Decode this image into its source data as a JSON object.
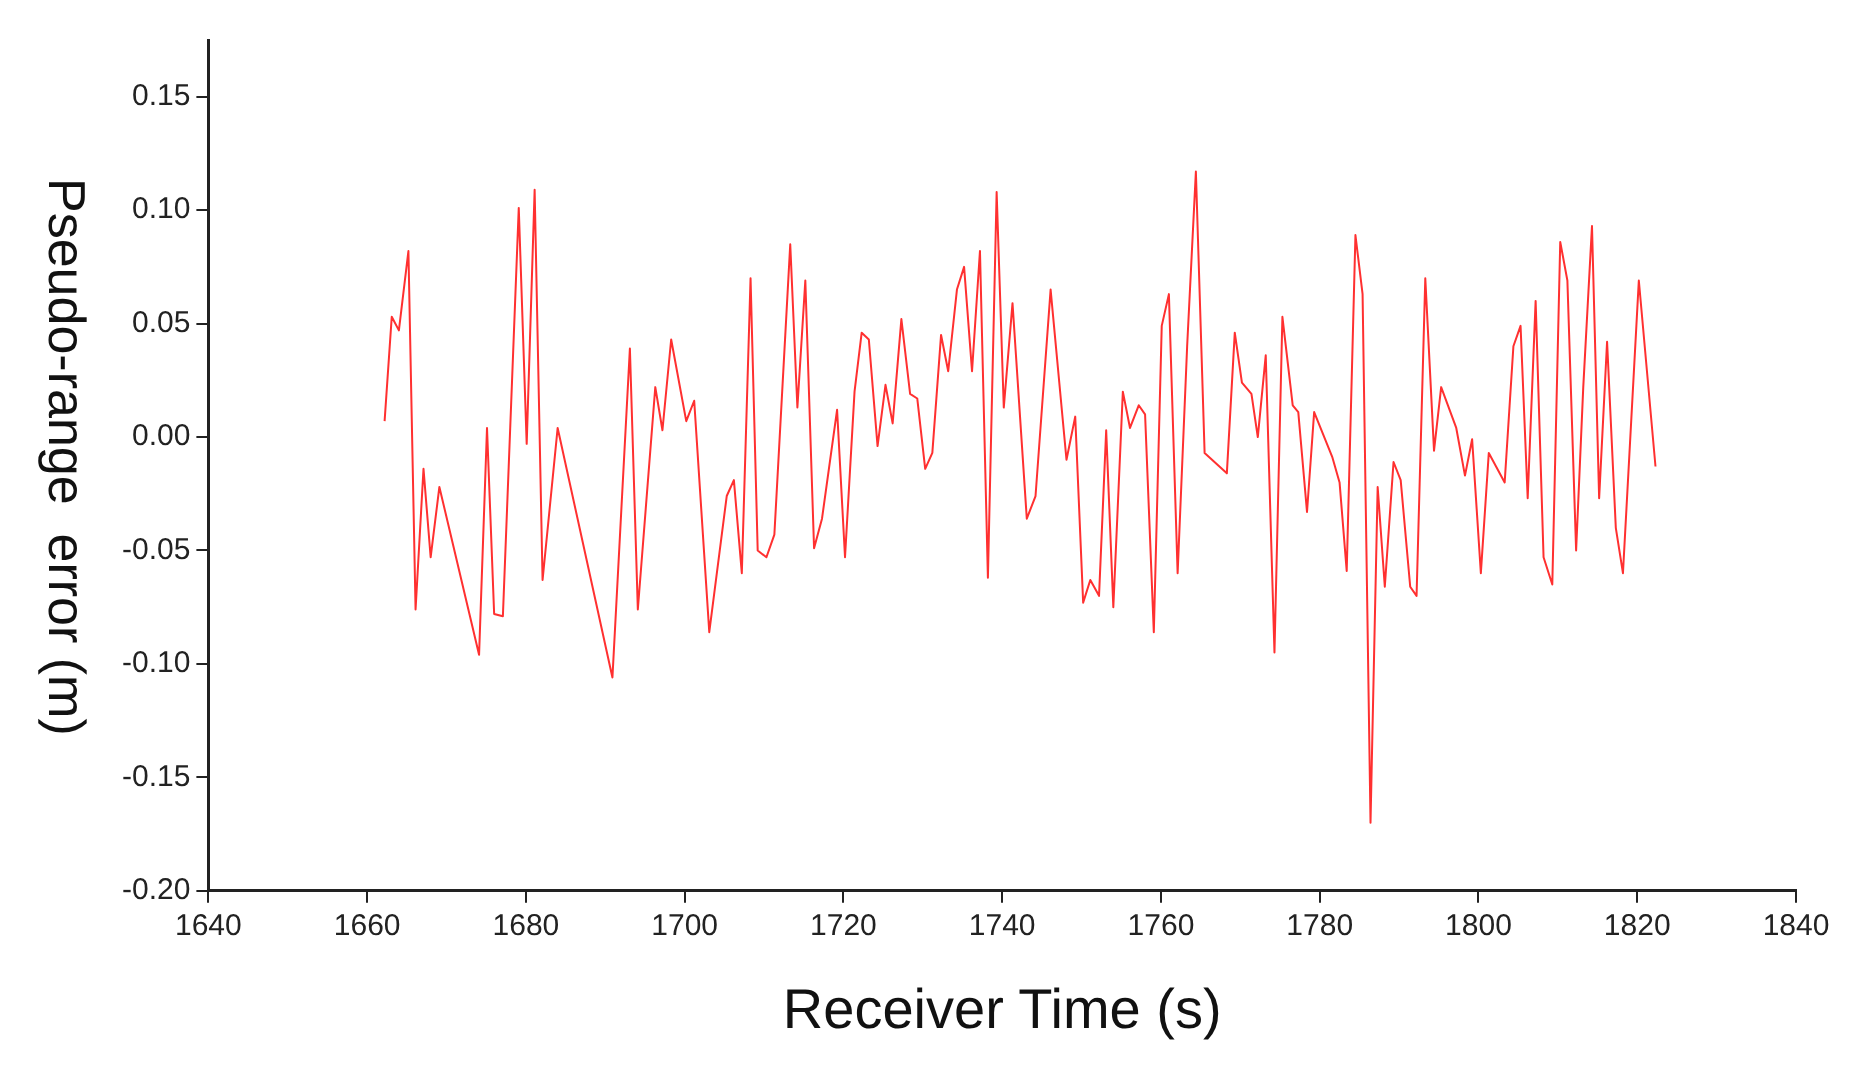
{
  "chart_data": {
    "type": "line",
    "xlabel": "Receiver Time (s)",
    "ylabel": "Pseudo-range  error (m)",
    "xlim": [
      1640,
      1840
    ],
    "xticks": [
      1640,
      1660,
      1680,
      1700,
      1720,
      1740,
      1760,
      1780,
      1800,
      1820,
      1840
    ],
    "ylim": [
      -0.2,
      0.175
    ],
    "yticks": [
      {
        "value": -0.2,
        "label": "-0.20"
      },
      {
        "value": -0.15,
        "label": "-0.15"
      },
      {
        "value": -0.1,
        "label": "-0.10"
      },
      {
        "value": -0.05,
        "label": "-0.05"
      },
      {
        "value": 0,
        "label": "0.00"
      },
      {
        "value": 0.05,
        "label": "0.05"
      },
      {
        "value": 0.1,
        "label": "0.10"
      },
      {
        "value": 0.15,
        "label": "0.15"
      }
    ],
    "grid": false,
    "legend": false,
    "marker": "none",
    "line_style": "solid",
    "series": [
      {
        "color": "#ff3030",
        "x": [
          1662.2,
          1663.1,
          1664.0,
          1665.2,
          1666.1,
          1667.1,
          1668.0,
          1669.1,
          1674.1,
          1675.1,
          1676.0,
          1677.1,
          1679.1,
          1680.1,
          1681.1,
          1682.1,
          1684.0,
          1690.9,
          1693.1,
          1694.1,
          1696.3,
          1697.2,
          1698.3,
          1700.2,
          1701.2,
          1703.1,
          1705.3,
          1706.2,
          1707.2,
          1708.3,
          1709.2,
          1710.3,
          1711.3,
          1713.3,
          1714.2,
          1715.2,
          1716.3,
          1717.3,
          1719.2,
          1720.2,
          1721.4,
          1722.3,
          1723.2,
          1724.3,
          1725.3,
          1726.2,
          1727.3,
          1728.4,
          1729.3,
          1730.3,
          1731.2,
          1732.3,
          1733.2,
          1734.3,
          1735.2,
          1736.2,
          1737.2,
          1738.2,
          1739.3,
          1740.2,
          1741.3,
          1743.1,
          1744.2,
          1746.1,
          1748.1,
          1749.2,
          1750.2,
          1751.1,
          1752.2,
          1753.1,
          1754.0,
          1755.2,
          1756.1,
          1757.2,
          1758.0,
          1759.1,
          1760.1,
          1761.0,
          1762.1,
          1763.3,
          1764.4,
          1765.5,
          1768.3,
          1769.3,
          1770.2,
          1771.4,
          1772.2,
          1773.2,
          1774.3,
          1775.3,
          1776.6,
          1777.3,
          1778.4,
          1779.3,
          1781.6,
          1782.5,
          1783.4,
          1784.5,
          1785.4,
          1786.4,
          1787.3,
          1788.2,
          1789.3,
          1790.2,
          1791.4,
          1792.2,
          1793.3,
          1794.4,
          1795.3,
          1797.2,
          1798.3,
          1799.2,
          1800.3,
          1801.3,
          1803.3,
          1804.4,
          1805.3,
          1806.2,
          1807.2,
          1808.2,
          1809.3,
          1810.3,
          1811.2,
          1812.3,
          1813.2,
          1814.3,
          1815.2,
          1816.2,
          1817.3,
          1818.2,
          1820.2,
          1822.3
        ],
        "values": [
          0.007,
          0.053,
          0.047,
          0.082,
          -0.076,
          -0.014,
          -0.053,
          -0.022,
          -0.096,
          0.004,
          -0.078,
          -0.079,
          0.101,
          -0.003,
          0.109,
          -0.063,
          0.004,
          -0.106,
          0.039,
          -0.076,
          0.022,
          0.003,
          0.043,
          0.007,
          0.016,
          -0.086,
          -0.026,
          -0.019,
          -0.06,
          0.07,
          -0.05,
          -0.053,
          -0.043,
          0.085,
          0.013,
          0.069,
          -0.049,
          -0.036,
          0.012,
          -0.053,
          0.02,
          0.046,
          0.043,
          -0.004,
          0.023,
          0.006,
          0.052,
          0.019,
          0.017,
          -0.014,
          -0.007,
          0.045,
          0.029,
          0.065,
          0.075,
          0.029,
          0.082,
          -0.062,
          0.108,
          0.013,
          0.059,
          -0.036,
          -0.026,
          0.065,
          -0.01,
          0.009,
          -0.073,
          -0.063,
          -0.07,
          0.003,
          -0.075,
          0.02,
          0.004,
          0.014,
          0.01,
          -0.086,
          0.049,
          0.063,
          -0.06,
          0.04,
          0.117,
          -0.007,
          -0.016,
          0.046,
          0.024,
          0.019,
          0.0,
          0.036,
          -0.095,
          0.053,
          0.014,
          0.011,
          -0.033,
          0.011,
          -0.009,
          -0.02,
          -0.059,
          0.089,
          0.063,
          -0.17,
          -0.022,
          -0.066,
          -0.011,
          -0.019,
          -0.066,
          -0.07,
          0.07,
          -0.006,
          0.022,
          0.004,
          -0.017,
          -0.001,
          -0.06,
          -0.007,
          -0.02,
          0.04,
          0.049,
          -0.027,
          0.06,
          -0.053,
          -0.065,
          0.086,
          0.069,
          -0.05,
          0.022,
          0.093,
          -0.027,
          0.042,
          -0.04,
          -0.06,
          0.069,
          -0.013
        ]
      }
    ]
  }
}
